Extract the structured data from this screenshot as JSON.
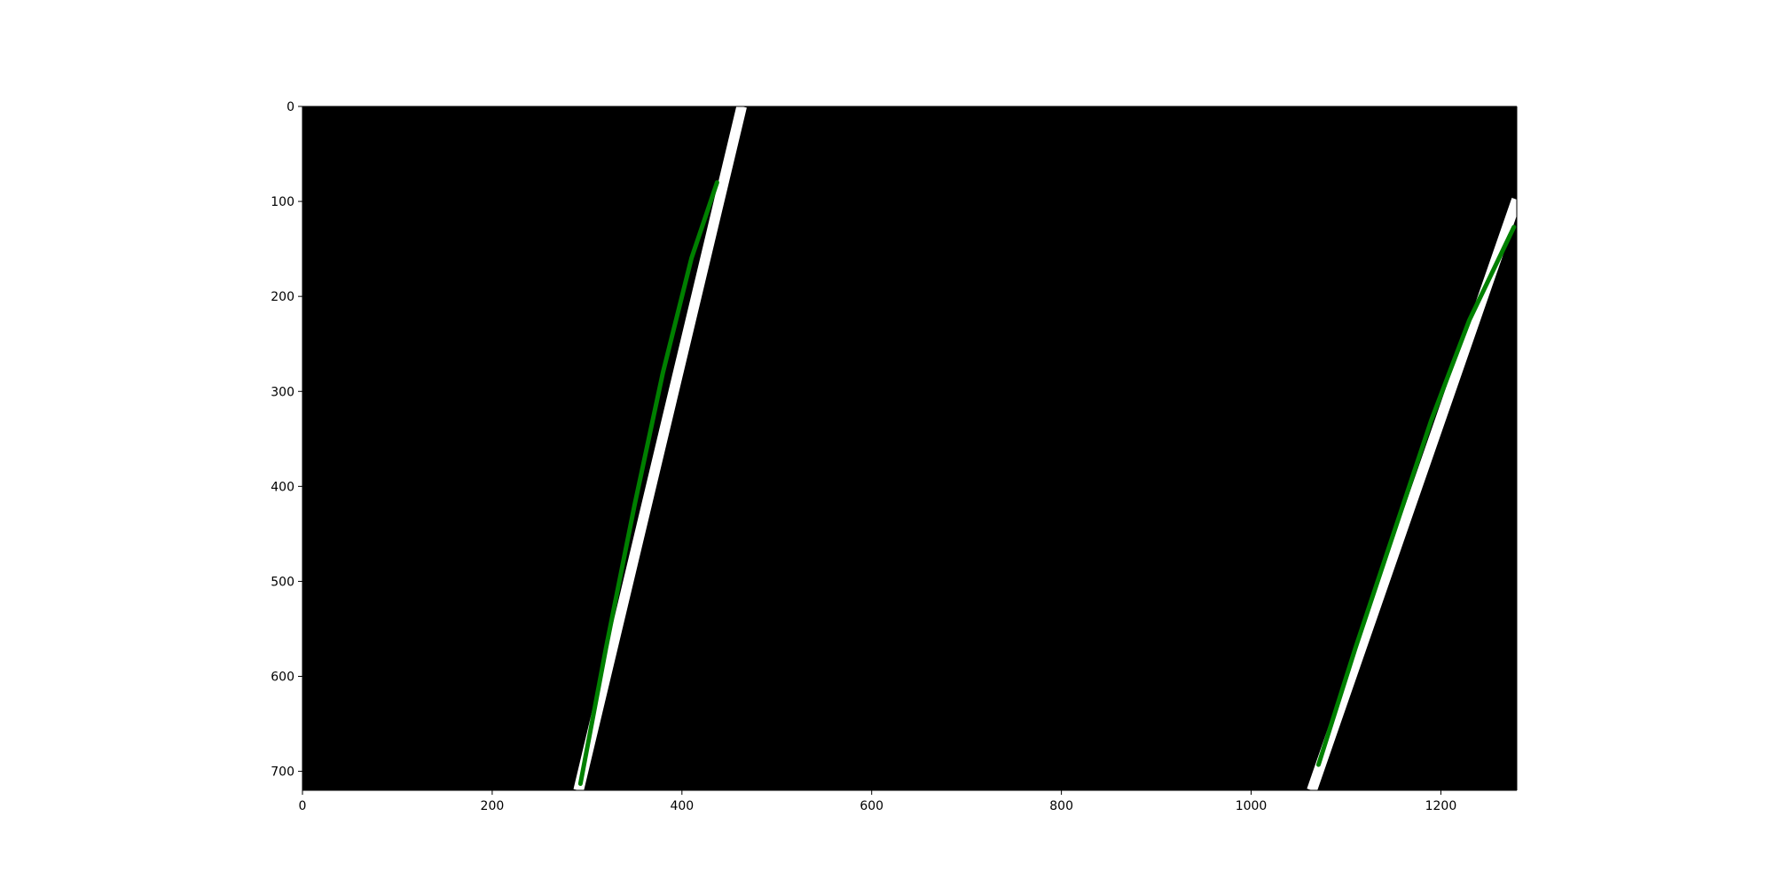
{
  "chart_data": {
    "type": "image",
    "title": "",
    "xlabel": "",
    "ylabel": "",
    "image_size": [
      1280,
      720
    ],
    "xlim": [
      0,
      1280
    ],
    "ylim": [
      720,
      0
    ],
    "x_ticks": [
      0,
      200,
      400,
      600,
      800,
      1000,
      1200
    ],
    "y_ticks": [
      0,
      100,
      200,
      300,
      400,
      500,
      600,
      700
    ],
    "grid": false,
    "background_color": "#000000",
    "lane_pixel_color": "#ffffff",
    "fit_line_color": "#008000",
    "lane_pixels": [
      {
        "name": "",
        "points": [
          {
            "x": 291,
            "y": 720
          },
          {
            "x": 463,
            "y": 0
          }
        ],
        "width": 11
      },
      {
        "name": "",
        "points": [
          {
            "x": 1064,
            "y": 720
          },
          {
            "x": 1280,
            "y": 98
          }
        ],
        "width": 11
      }
    ],
    "series": [
      {
        "name": "",
        "x": [
          293,
          320,
          350,
          380,
          410,
          437
        ],
        "y": [
          713,
          570,
          420,
          280,
          160,
          80
        ]
      },
      {
        "name": "",
        "x": [
          1071,
          1110,
          1150,
          1190,
          1230,
          1277
        ],
        "y": [
          693,
          570,
          450,
          330,
          225,
          127
        ]
      }
    ]
  }
}
